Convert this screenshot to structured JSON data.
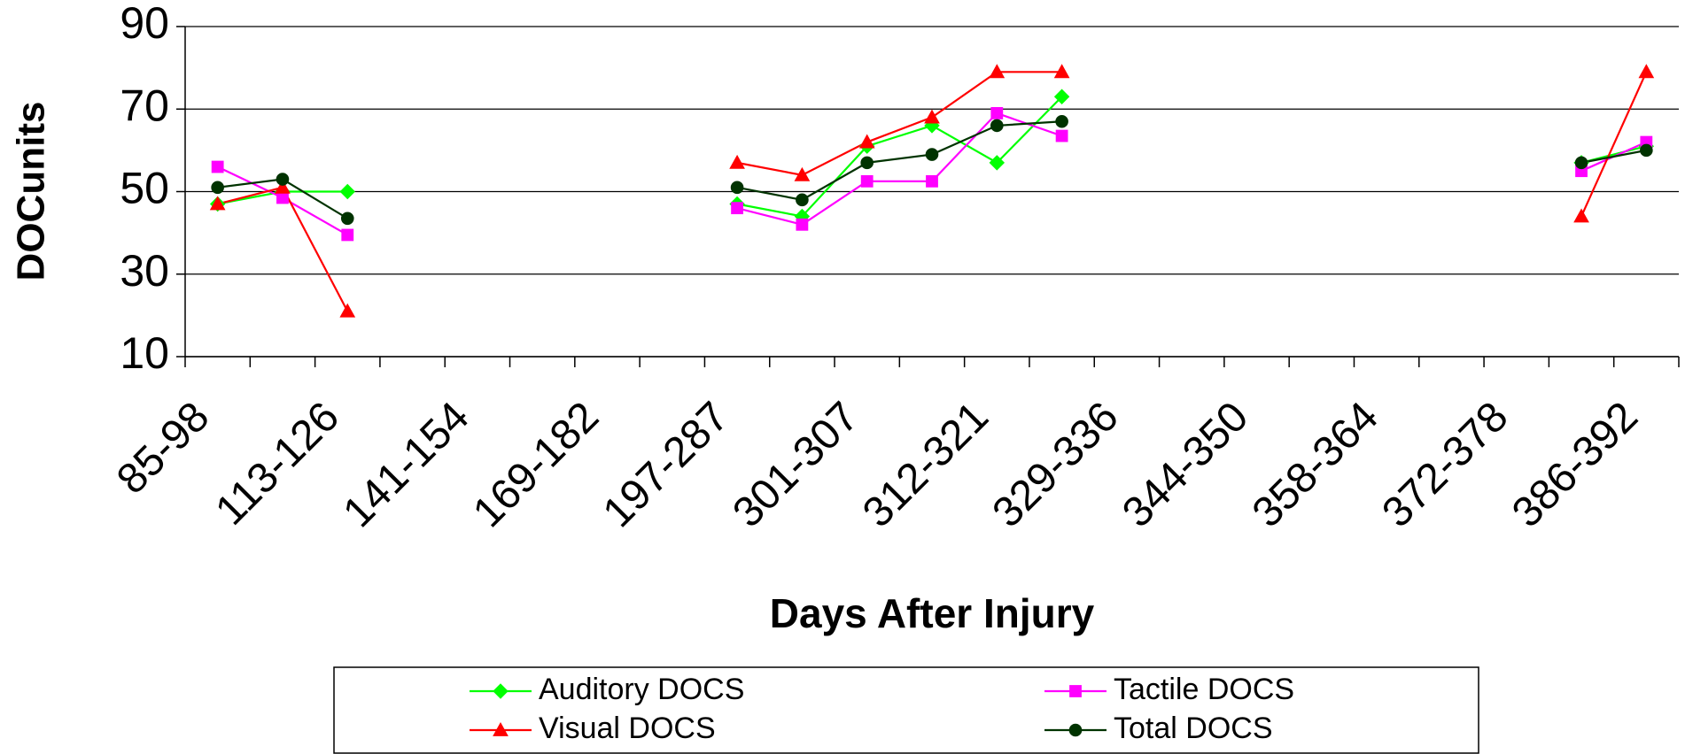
{
  "chart_data": {
    "type": "line",
    "xlabel": "Days After Injury",
    "ylabel": "DOCunits",
    "categories": [
      "85-98",
      null,
      "113-126",
      null,
      "141-154",
      null,
      "169-182",
      null,
      "197-287",
      null,
      "301-307",
      null,
      "312-321",
      null,
      "329-336",
      null,
      "344-350",
      null,
      "358-364",
      null,
      "372-378",
      null,
      "386-392"
    ],
    "ylim": [
      10,
      90
    ],
    "yticks": [
      10,
      30,
      50,
      70,
      90
    ],
    "grid": true,
    "legend": "bottom",
    "series": [
      {
        "name": "Auditory DOCS",
        "color": "#00ff00",
        "marker": "diamond",
        "values": [
          47,
          50,
          50,
          null,
          null,
          null,
          null,
          null,
          47,
          44,
          61,
          66,
          57,
          73,
          null,
          null,
          null,
          null,
          null,
          null,
          null,
          57,
          61
        ]
      },
      {
        "name": "Tactile DOCS",
        "color": "#ff00ff",
        "marker": "square",
        "values": [
          56,
          48.5,
          39.5,
          null,
          null,
          null,
          null,
          null,
          46,
          42,
          52.5,
          52.5,
          69,
          63.5,
          null,
          null,
          null,
          null,
          null,
          null,
          null,
          55,
          62
        ]
      },
      {
        "name": "Visual DOCS",
        "color": "#ff0000",
        "marker": "triangle",
        "values": [
          47,
          51,
          21,
          null,
          null,
          null,
          null,
          null,
          57,
          54,
          62,
          68,
          79,
          79,
          null,
          null,
          null,
          null,
          null,
          null,
          null,
          44,
          79
        ]
      },
      {
        "name": "Total DOCS",
        "color": "#003300",
        "marker": "circle",
        "values": [
          51,
          53,
          43.5,
          null,
          null,
          null,
          null,
          null,
          51,
          48,
          57,
          59,
          66,
          67,
          null,
          null,
          null,
          null,
          null,
          null,
          null,
          57,
          60
        ]
      }
    ]
  }
}
